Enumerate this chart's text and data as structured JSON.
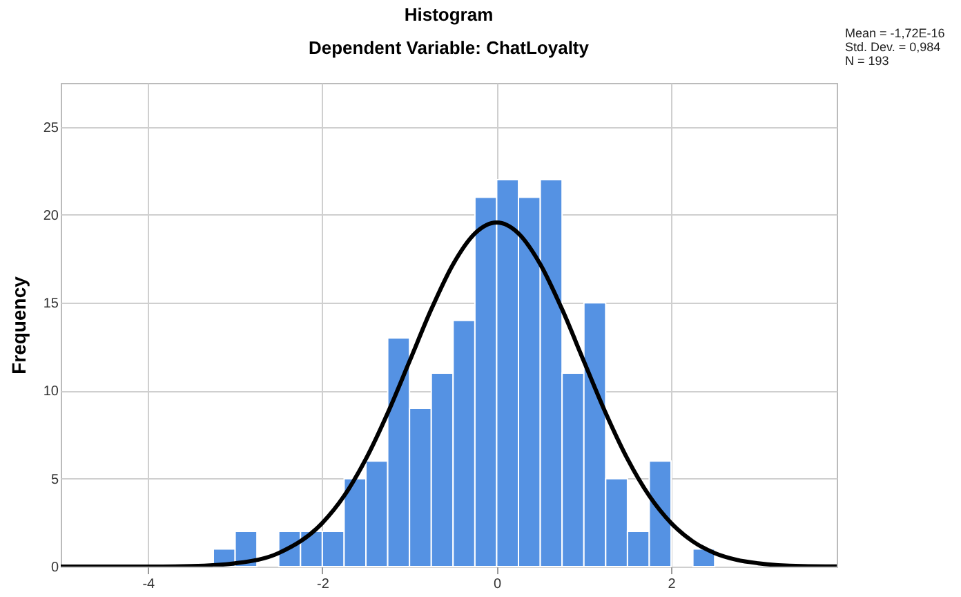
{
  "chart_data": {
    "type": "histogram",
    "title": "Histogram",
    "subtitle": "Dependent Variable: ChatLoyalty",
    "ylabel": "Frequency",
    "annotations": [
      "Mean = -1,72E-16",
      "Std. Dev. = 0,984",
      "N = 193"
    ],
    "bins": [
      -3.25,
      -3.0,
      -2.75,
      -2.5,
      -2.25,
      -2.0,
      -1.75,
      -1.5,
      -1.25,
      -1.0,
      -0.75,
      -0.5,
      -0.25,
      0,
      0.25,
      0.5,
      0.75,
      1.0,
      1.25,
      1.5,
      1.75,
      2.0,
      2.25,
      2.5
    ],
    "values": [
      1,
      2,
      0,
      2,
      2,
      2,
      5,
      6,
      13,
      9,
      11,
      14,
      21,
      22,
      21,
      22,
      11,
      15,
      5,
      2,
      6,
      0,
      1
    ],
    "color": "#5592e3",
    "series": [
      {
        "type": "line",
        "color": "#000000",
        "x": [
          -5,
          -4,
          -3.5,
          -3,
          -2.5,
          -2,
          -1.75,
          -1.5,
          -1.25,
          -1,
          -0.75,
          -0.5,
          -0.25,
          0,
          0.25,
          0.5,
          0.75,
          1,
          1.25,
          1.5,
          1.75,
          2,
          2.25,
          2.5,
          2.75,
          3,
          3.5,
          3.9
        ],
        "values": [
          0,
          0,
          0.03,
          0.19,
          0.77,
          2.48,
          4.02,
          6.12,
          8.73,
          11.67,
          14.63,
          17.19,
          18.94,
          19.56,
          18.94,
          17.19,
          14.63,
          11.67,
          8.73,
          6.12,
          4.02,
          2.48,
          1.43,
          0.77,
          0.39,
          0.19,
          0.03,
          0.01
        ]
      }
    ],
    "xlim": [
      -5,
      3.9
    ],
    "xticks": [
      -4,
      -2,
      0,
      2
    ],
    "ylim": [
      0,
      27.5
    ],
    "yticks": [
      0,
      5,
      10,
      15,
      20,
      25
    ],
    "grid": true
  }
}
